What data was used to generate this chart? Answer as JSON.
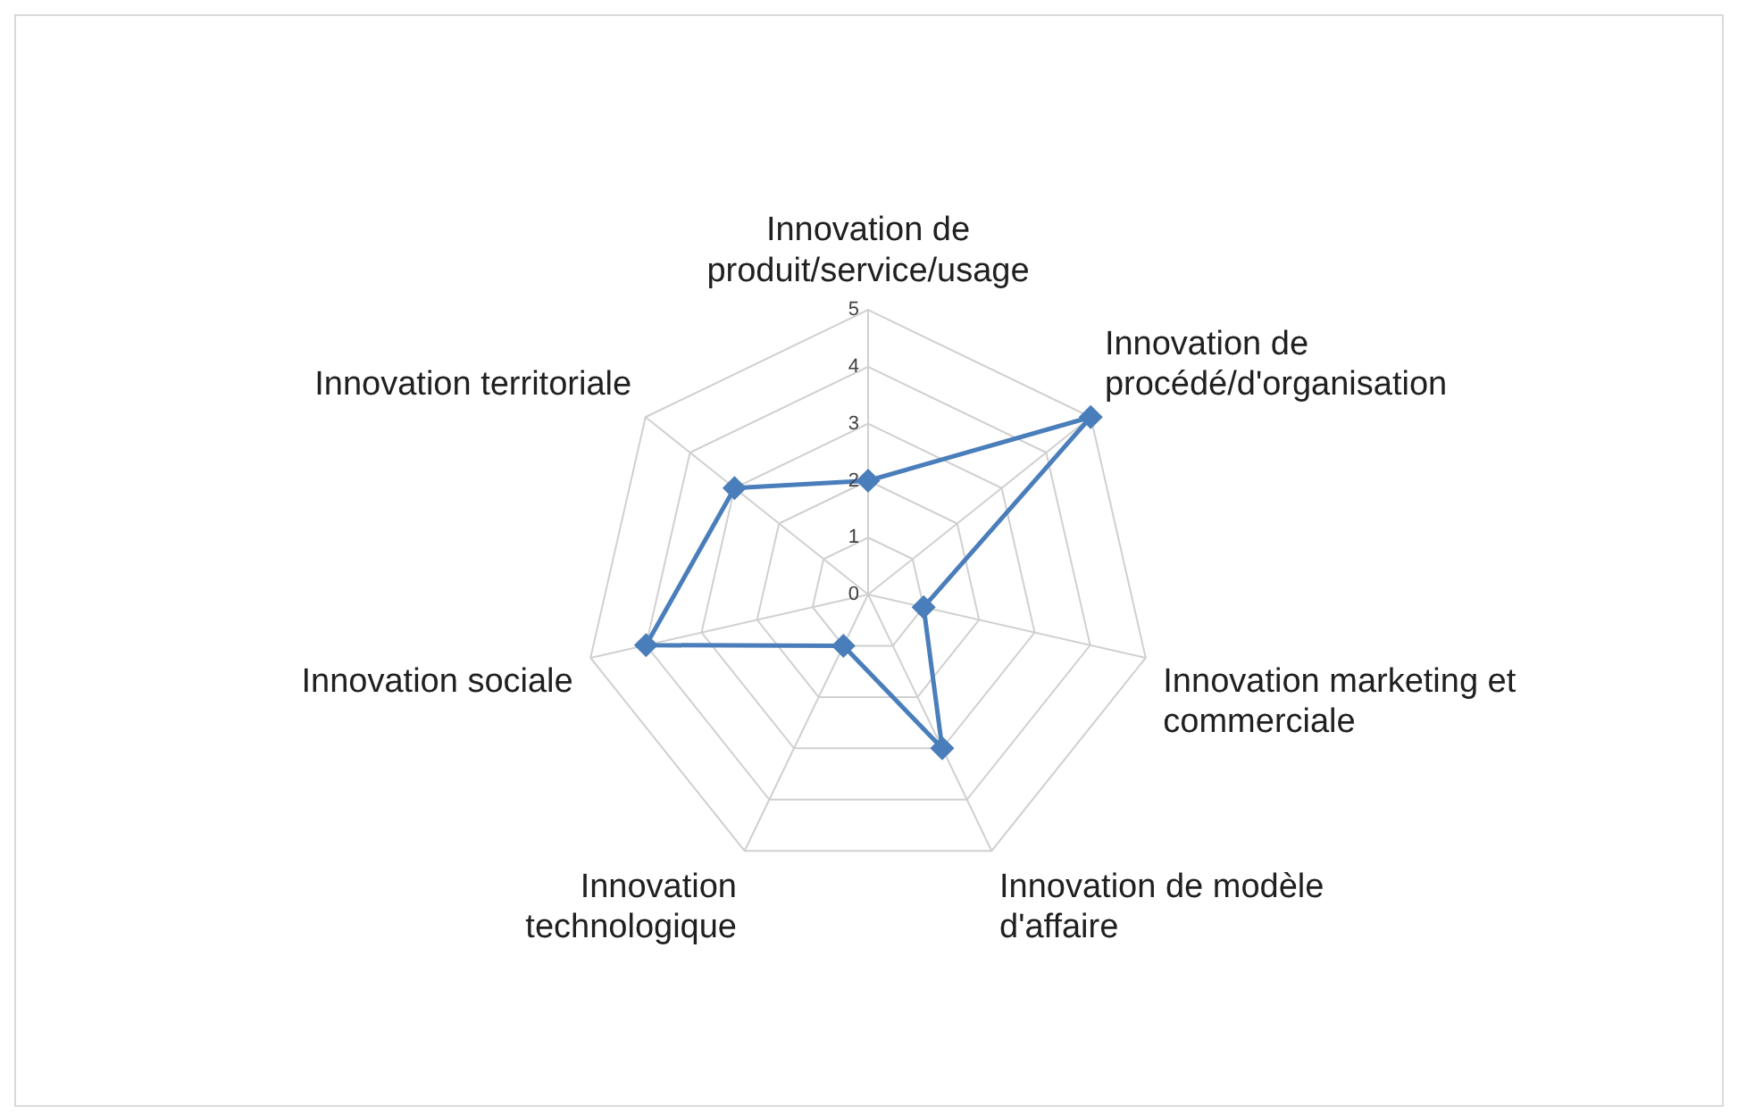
{
  "chart_data": {
    "type": "radar",
    "categories": [
      "Innovation de produit/service/usage",
      "Innovation de procédé/d'organisation",
      "Innovation marketing et commerciale",
      "Innovation de modèle d'affaire",
      "Innovation technologique",
      "Innovation sociale",
      "Innovation territoriale"
    ],
    "series": [
      {
        "color": "#4a7ebb",
        "values": [
          2,
          5,
          1,
          3,
          1,
          4,
          3
        ]
      }
    ],
    "ylim": [
      0,
      5
    ],
    "yticks": [
      0,
      1,
      2,
      3,
      4,
      5
    ],
    "grid": true,
    "legend": false,
    "marker": "diamond",
    "line_style": "solid"
  }
}
